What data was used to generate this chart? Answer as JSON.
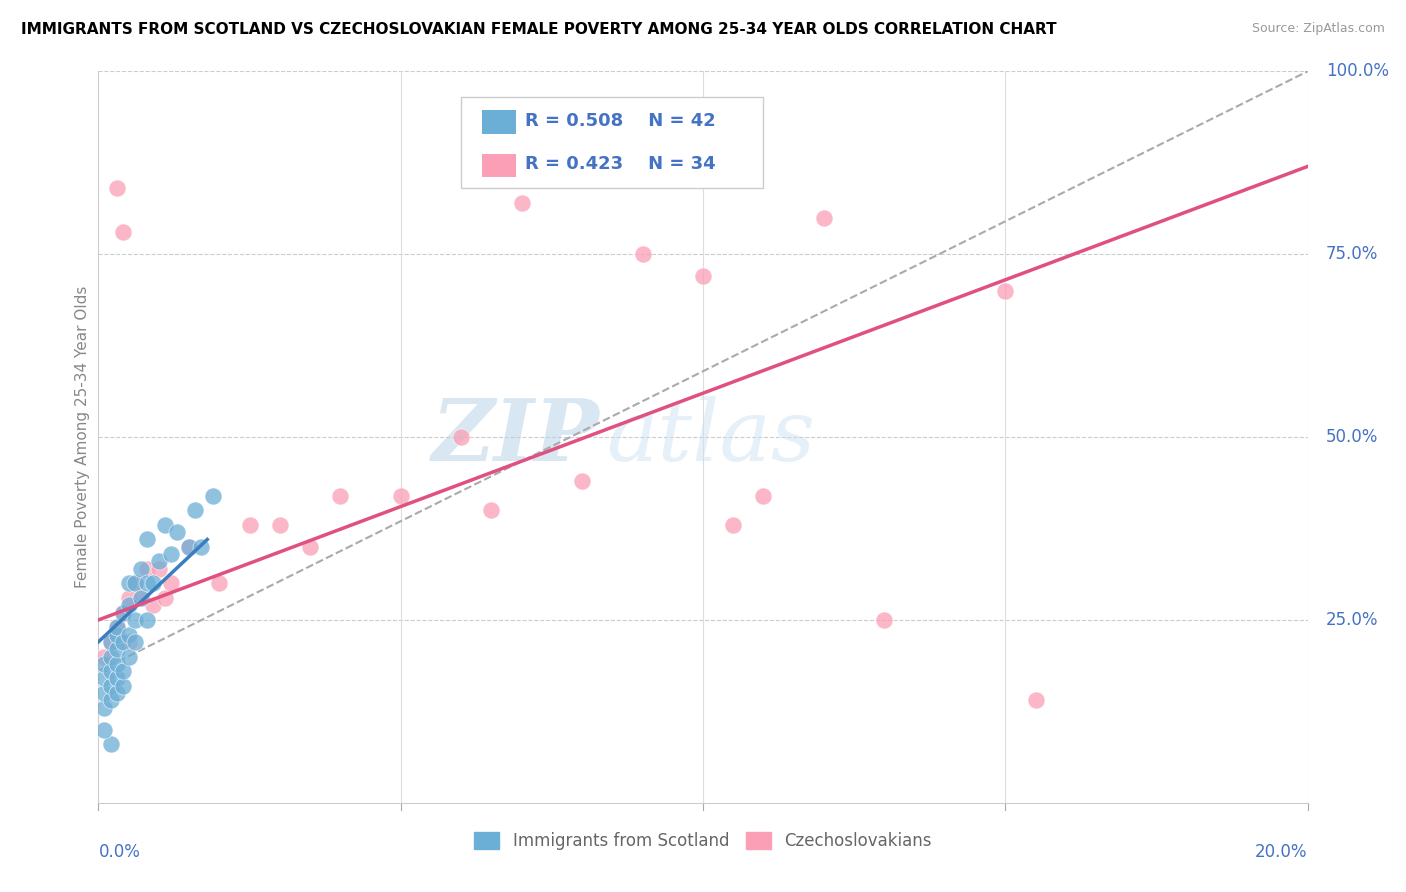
{
  "title": "IMMIGRANTS FROM SCOTLAND VS CZECHOSLOVAKIAN FEMALE POVERTY AMONG 25-34 YEAR OLDS CORRELATION CHART",
  "source": "Source: ZipAtlas.com",
  "ylabel_label": "Female Poverty Among 25-34 Year Olds",
  "legend_bottom": [
    "Immigrants from Scotland",
    "Czechoslovakians"
  ],
  "blue_R": 0.508,
  "blue_N": 42,
  "pink_R": 0.423,
  "pink_N": 34,
  "blue_color": "#6baed6",
  "pink_color": "#fa9fb5",
  "blue_line_color": "#3a7ebf",
  "pink_line_color": "#e05080",
  "dashed_line_color": "#aaaaaa",
  "watermark_zip": "ZIP",
  "watermark_atlas": "atlas",
  "axis_label_color": "#4472c4",
  "ylabel_color": "#888888",
  "xlim": [
    0,
    0.2
  ],
  "ylim": [
    0,
    1.0
  ],
  "blue_scatter_x": [
    0.001,
    0.001,
    0.001,
    0.001,
    0.002,
    0.002,
    0.002,
    0.002,
    0.002,
    0.003,
    0.003,
    0.003,
    0.003,
    0.003,
    0.003,
    0.004,
    0.004,
    0.004,
    0.004,
    0.005,
    0.005,
    0.005,
    0.005,
    0.006,
    0.006,
    0.006,
    0.007,
    0.007,
    0.008,
    0.008,
    0.008,
    0.009,
    0.01,
    0.011,
    0.012,
    0.013,
    0.015,
    0.016,
    0.017,
    0.019,
    0.002,
    0.001
  ],
  "blue_scatter_y": [
    0.13,
    0.15,
    0.17,
    0.19,
    0.14,
    0.16,
    0.18,
    0.2,
    0.22,
    0.15,
    0.17,
    0.19,
    0.21,
    0.23,
    0.24,
    0.16,
    0.18,
    0.22,
    0.26,
    0.2,
    0.23,
    0.27,
    0.3,
    0.22,
    0.25,
    0.3,
    0.28,
    0.32,
    0.25,
    0.3,
    0.36,
    0.3,
    0.33,
    0.38,
    0.34,
    0.37,
    0.35,
    0.4,
    0.35,
    0.42,
    0.08,
    0.1
  ],
  "pink_scatter_x": [
    0.001,
    0.002,
    0.003,
    0.003,
    0.004,
    0.004,
    0.005,
    0.005,
    0.006,
    0.007,
    0.008,
    0.009,
    0.01,
    0.011,
    0.012,
    0.015,
    0.02,
    0.025,
    0.03,
    0.035,
    0.04,
    0.05,
    0.06,
    0.065,
    0.07,
    0.08,
    0.09,
    0.1,
    0.105,
    0.11,
    0.12,
    0.13,
    0.15,
    0.155
  ],
  "pink_scatter_y": [
    0.2,
    0.22,
    0.24,
    0.84,
    0.26,
    0.78,
    0.22,
    0.28,
    0.3,
    0.28,
    0.32,
    0.27,
    0.32,
    0.28,
    0.3,
    0.35,
    0.3,
    0.38,
    0.38,
    0.35,
    0.42,
    0.42,
    0.5,
    0.4,
    0.82,
    0.44,
    0.75,
    0.72,
    0.38,
    0.42,
    0.8,
    0.25,
    0.7,
    0.14
  ],
  "blue_trendline_x": [
    0.0,
    0.018
  ],
  "blue_trendline_y": [
    0.22,
    0.36
  ],
  "pink_trendline_x": [
    0.0,
    0.2
  ],
  "pink_trendline_y": [
    0.25,
    0.87
  ],
  "dashed_trendline_x": [
    0.0,
    0.2
  ],
  "dashed_trendline_y": [
    0.18,
    1.0
  ],
  "hgrid_vals": [
    0.25,
    0.5,
    0.75,
    1.0
  ],
  "vgrid_vals": [
    0.05,
    0.1,
    0.15,
    0.2
  ],
  "xtick_labels_x": [
    0.0,
    0.05,
    0.1,
    0.15,
    0.2
  ],
  "ytick_labels": [
    [
      0.25,
      "25.0%"
    ],
    [
      0.5,
      "50.0%"
    ],
    [
      0.75,
      "75.0%"
    ],
    [
      1.0,
      "100.0%"
    ]
  ]
}
